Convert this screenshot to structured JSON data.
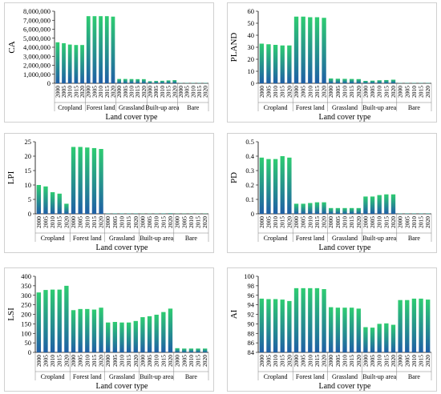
{
  "colors": {
    "bar_top": "#2ecc71",
    "bar_bottom": "#1f5fa6",
    "axis": "#000000",
    "grid": "#808080"
  },
  "chart_data": [
    {
      "id": "ca",
      "type": "bar",
      "ylabel": "CA",
      "xlabel": "Land cover type",
      "groups": [
        "Cropland",
        "Forest land",
        "Grassland",
        "Built-up area",
        "Bare"
      ],
      "years": [
        "2000",
        "2005",
        "2010",
        "2015",
        "2020"
      ],
      "ylim": [
        0,
        8000000
      ],
      "yticks": [
        0,
        1000000,
        2000000,
        3000000,
        4000000,
        5000000,
        6000000,
        7000000,
        8000000
      ],
      "ytick_labels": [
        "0",
        "1,000,000",
        "2,000,000",
        "3,000,000",
        "4,000,000",
        "5,000,000",
        "6,000,000",
        "7,000,000",
        "8,000,000"
      ],
      "values": [
        [
          4550000,
          4450000,
          4300000,
          4250000,
          4250000
        ],
        [
          7450000,
          7450000,
          7450000,
          7450000,
          7400000
        ],
        [
          480000,
          480000,
          470000,
          460000,
          460000
        ],
        [
          230000,
          260000,
          280000,
          320000,
          350000
        ],
        [
          40000,
          40000,
          40000,
          40000,
          40000
        ]
      ]
    },
    {
      "id": "pland",
      "type": "bar",
      "ylabel": "PLAND",
      "xlabel": "Land cover type",
      "groups": [
        "Cropland",
        "Forest land",
        "Grassland",
        "Built-up area",
        "Bare"
      ],
      "years": [
        "2000",
        "2005",
        "2010",
        "2015",
        "2020"
      ],
      "ylim": [
        0,
        60
      ],
      "yticks": [
        0,
        10,
        20,
        30,
        40,
        50,
        60
      ],
      "ytick_labels": [
        "0",
        "10",
        "20",
        "30",
        "40",
        "50",
        "60"
      ],
      "values": [
        [
          33,
          32.5,
          32,
          31.5,
          31.5
        ],
        [
          55.5,
          55.5,
          55,
          55,
          54.5
        ],
        [
          4,
          3.8,
          3.7,
          3.6,
          3.5
        ],
        [
          2,
          2.2,
          2.5,
          2.7,
          3
        ],
        [
          0.3,
          0.3,
          0.3,
          0.3,
          0.3
        ]
      ]
    },
    {
      "id": "lpi",
      "type": "bar",
      "ylabel": "LPI",
      "xlabel": "Land cover type",
      "groups": [
        "Cropland",
        "Forest land",
        "Grassland",
        "Built-up area",
        "Bare"
      ],
      "years": [
        "2000",
        "2005",
        "2010",
        "2015",
        "2020"
      ],
      "ylim": [
        0,
        25
      ],
      "yticks": [
        0,
        5,
        10,
        15,
        20,
        25
      ],
      "ytick_labels": [
        "0",
        "5",
        "10",
        "15",
        "20",
        "25"
      ],
      "values": [
        [
          10,
          9.5,
          7.5,
          7,
          3.5
        ],
        [
          23.2,
          23.2,
          23,
          22.8,
          22.5
        ],
        [
          0.15,
          0.15,
          0.15,
          0.15,
          0.15
        ],
        [
          0.08,
          0.1,
          0.12,
          0.15,
          0.2
        ],
        [
          0.02,
          0.02,
          0.02,
          0.02,
          0.02
        ]
      ]
    },
    {
      "id": "pd",
      "type": "bar",
      "ylabel": "PD",
      "xlabel": "Land cover type",
      "groups": [
        "Cropland",
        "Forest land",
        "Grassland",
        "Built-up area",
        "Bare"
      ],
      "years": [
        "2000",
        "2005",
        "2010",
        "2015",
        "2020"
      ],
      "ylim": [
        0,
        0.5
      ],
      "yticks": [
        0,
        0.1,
        0.2,
        0.3,
        0.4,
        0.5
      ],
      "ytick_labels": [
        "0",
        "0.1",
        "0.2",
        "0.3",
        "0.4",
        "0.5"
      ],
      "values": [
        [
          0.39,
          0.38,
          0.38,
          0.4,
          0.39
        ],
        [
          0.07,
          0.07,
          0.075,
          0.08,
          0.08
        ],
        [
          0.04,
          0.04,
          0.04,
          0.04,
          0.04
        ],
        [
          0.12,
          0.12,
          0.13,
          0.135,
          0.135
        ],
        [
          0.003,
          0.003,
          0.003,
          0.003,
          0.003
        ]
      ]
    },
    {
      "id": "lsi",
      "type": "bar",
      "ylabel": "LSI",
      "xlabel": "Land cover type",
      "groups": [
        "Cropland",
        "Forest land",
        "Grassland",
        "Built-up area",
        "Bare"
      ],
      "years": [
        "2000",
        "2005",
        "2010",
        "2015",
        "2020"
      ],
      "ylim": [
        0,
        400
      ],
      "yticks": [
        0,
        50,
        100,
        150,
        200,
        250,
        300,
        350,
        400
      ],
      "ytick_labels": [
        "0",
        "50",
        "100",
        "150",
        "200",
        "250",
        "300",
        "350",
        "400"
      ],
      "values": [
        [
          315,
          328,
          330,
          330,
          350
        ],
        [
          222,
          228,
          228,
          225,
          235
        ],
        [
          157,
          160,
          157,
          157,
          165
        ],
        [
          185,
          190,
          198,
          212,
          230
        ],
        [
          22,
          20,
          20,
          20,
          20
        ]
      ]
    },
    {
      "id": "ai",
      "type": "bar",
      "ylabel": "AI",
      "xlabel": "Land cover type",
      "groups": [
        "Cropland",
        "Forest land",
        "Grassland",
        "Built-up area",
        "Bare"
      ],
      "years": [
        "2000",
        "2005",
        "2010",
        "2015",
        "2020"
      ],
      "ylim": [
        84,
        100
      ],
      "yticks": [
        84,
        86,
        88,
        90,
        92,
        94,
        96,
        98,
        100
      ],
      "ytick_labels": [
        "84",
        "86",
        "88",
        "90",
        "92",
        "94",
        "96",
        "98",
        "100"
      ],
      "values": [
        [
          95.3,
          95.2,
          95.2,
          95.1,
          94.8
        ],
        [
          97.5,
          97.5,
          97.5,
          97.5,
          97.3
        ],
        [
          93.5,
          93.4,
          93.4,
          93.4,
          93.2
        ],
        [
          89.3,
          89.2,
          90,
          90.1,
          89.8
        ],
        [
          95,
          95,
          95.3,
          95.3,
          95.1
        ]
      ]
    }
  ]
}
